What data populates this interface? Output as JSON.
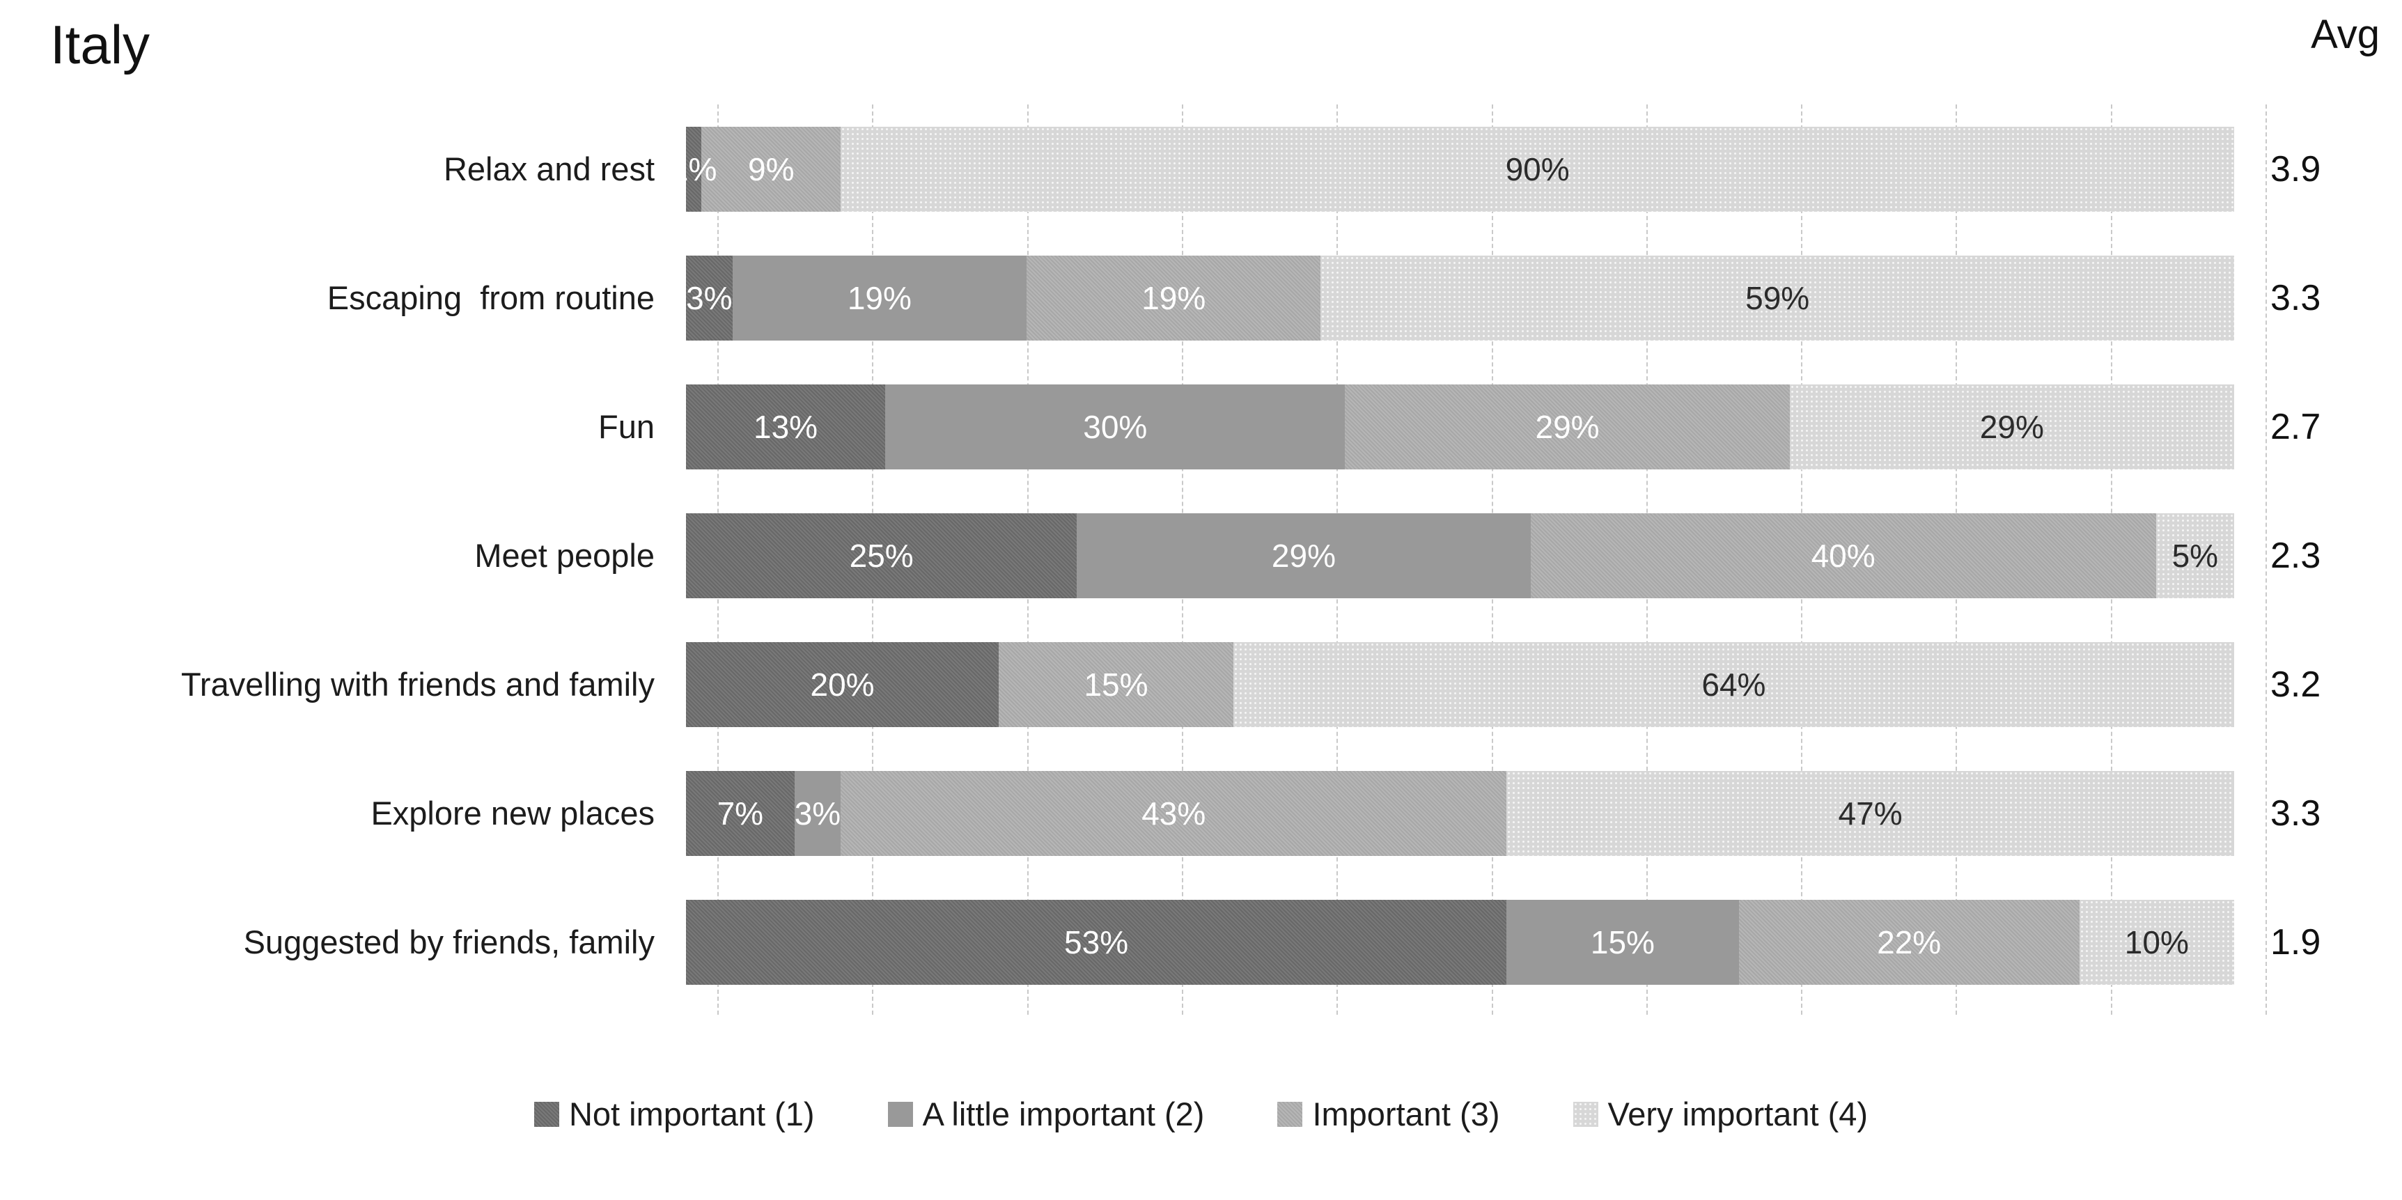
{
  "title": "Italy",
  "avg_header": "Avg",
  "chart_data": {
    "type": "bar",
    "subtype": "stacked-100",
    "orientation": "horizontal",
    "title": "Italy",
    "unit": "%",
    "axis": {
      "xlim": [
        0,
        100
      ],
      "gridline_step_pct": 10,
      "grid": true,
      "grid_style": "dashed"
    },
    "series_meta": [
      {
        "name": "Not important (1)",
        "color": "#6e6e6e",
        "label_color": "#ffffff"
      },
      {
        "name": "A little important (2)",
        "color": "#999999",
        "label_color": "#ffffff"
      },
      {
        "name": "Important (3)",
        "color": "#aeaeae",
        "label_color": "#ffffff"
      },
      {
        "name": "Very important (4)",
        "color": "#d7d7d7",
        "label_color": "#2b2b2b"
      }
    ],
    "rows": [
      {
        "category": "Relax and rest",
        "values": [
          1,
          0,
          9,
          90
        ],
        "labels": [
          "1%",
          "",
          "9%",
          "90%"
        ],
        "avg": "3.9"
      },
      {
        "category": "Escaping  from routine",
        "values": [
          3,
          19,
          19,
          59
        ],
        "labels": [
          "3%",
          "19%",
          "19%",
          "59%"
        ],
        "avg": "3.3"
      },
      {
        "category": "Fun",
        "values": [
          13,
          30,
          29,
          29
        ],
        "labels": [
          "13%",
          "30%",
          "29%",
          "29%"
        ],
        "avg": "2.7"
      },
      {
        "category": "Meet people",
        "values": [
          25,
          29,
          40,
          5
        ],
        "labels": [
          "25%",
          "29%",
          "40%",
          "5%"
        ],
        "avg": "2.3"
      },
      {
        "category": "Travelling with friends and family",
        "values": [
          20,
          0,
          15,
          64
        ],
        "labels": [
          "20%",
          "",
          "15%",
          "64%"
        ],
        "avg": "3.2"
      },
      {
        "category": "Explore new places",
        "values": [
          7,
          3,
          43,
          47
        ],
        "labels": [
          "7%",
          "3%",
          "43%",
          "47%"
        ],
        "avg": "3.3"
      },
      {
        "category": "Suggested by friends, family",
        "values": [
          53,
          15,
          22,
          10
        ],
        "labels": [
          "53%",
          "15%",
          "22%",
          "10%"
        ],
        "avg": "1.9"
      }
    ],
    "legend": [
      "Not important (1)",
      "A little important (2)",
      "Important (3)",
      "Very important (4)"
    ],
    "legend_position": "bottom",
    "avg_column_header": "Avg"
  }
}
